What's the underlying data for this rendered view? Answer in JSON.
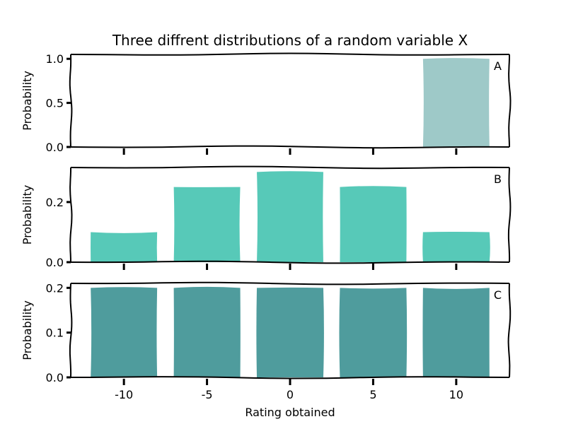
{
  "title": "Three diffrent distributions of a random variable X",
  "chart_data": {
    "type": "bar",
    "title": "Three diffrent distributions of a random variable X",
    "xlabel": "Rating obtained",
    "ylabel": "Probability",
    "categories": [
      -10,
      -5,
      0,
      5,
      10
    ],
    "xticks": [
      "-10",
      "-5",
      "0",
      "5",
      "10"
    ],
    "xlim": [
      -13.2,
      13.2
    ],
    "bar_width": 4,
    "panels": [
      {
        "label": "A",
        "color": "#9ec9c8",
        "ylim": [
          0,
          1.05
        ],
        "yticks": [
          "0.0",
          "0.5",
          "1.0"
        ],
        "ytick_values": [
          0,
          0.5,
          1.0
        ],
        "values": [
          0,
          0,
          0,
          0,
          1.0
        ]
      },
      {
        "label": "B",
        "color": "#57c9b8",
        "ylim": [
          0,
          0.315
        ],
        "yticks": [
          "0.0",
          "0.2"
        ],
        "ytick_values": [
          0,
          0.2
        ],
        "values": [
          0.1,
          0.25,
          0.3,
          0.25,
          0.1
        ]
      },
      {
        "label": "C",
        "color": "#4f9c9d",
        "ylim": [
          0,
          0.21
        ],
        "yticks": [
          "0.0",
          "0.1",
          "0.2"
        ],
        "ytick_values": [
          0,
          0.1,
          0.2
        ],
        "values": [
          0.2,
          0.2,
          0.2,
          0.2,
          0.2
        ]
      }
    ]
  }
}
